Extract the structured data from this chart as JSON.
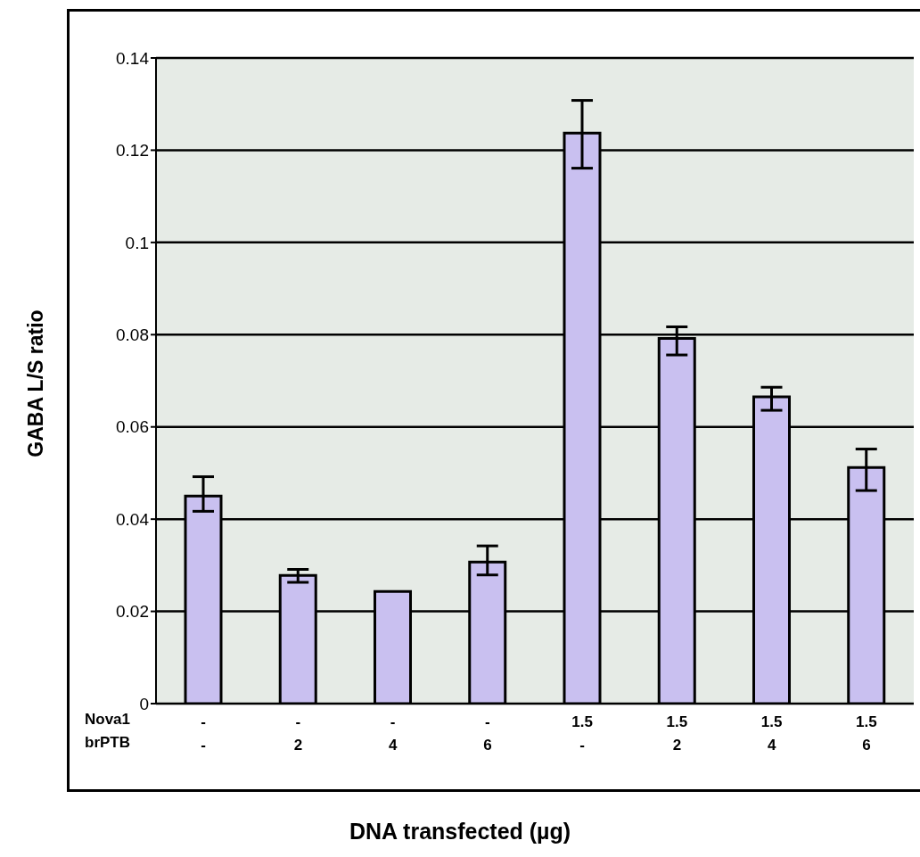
{
  "chart_data": {
    "type": "bar",
    "xlabel": "DNA transfected (µg)",
    "ylabel": "GABA L/S ratio",
    "categories": [
      "-\n-",
      "-\n2",
      "-\n4",
      "-\n6",
      "1.5\n-",
      "1.5\n2",
      "1.5\n4",
      "1.5\n6"
    ],
    "annotations": [
      "Nova1",
      "brPTB"
    ],
    "values": [
      0.045,
      0.0278,
      0.0243,
      0.0307,
      0.1237,
      0.0792,
      0.0665,
      0.0512
    ],
    "errors": [
      [
        0.0417,
        0.0492
      ],
      [
        0.0263,
        0.0291
      ],
      null,
      [
        0.0279,
        0.0342
      ],
      [
        0.1161,
        0.1308
      ],
      [
        0.0756,
        0.0817
      ],
      [
        0.0636,
        0.0686
      ],
      [
        0.0462,
        0.0552
      ]
    ],
    "color": "#c9c0f0",
    "ylim": [
      0,
      0.14
    ],
    "yticks": [
      0,
      0.02,
      0.04,
      0.06,
      0.08,
      0.1,
      0.12,
      0.14
    ],
    "grid": "y"
  }
}
